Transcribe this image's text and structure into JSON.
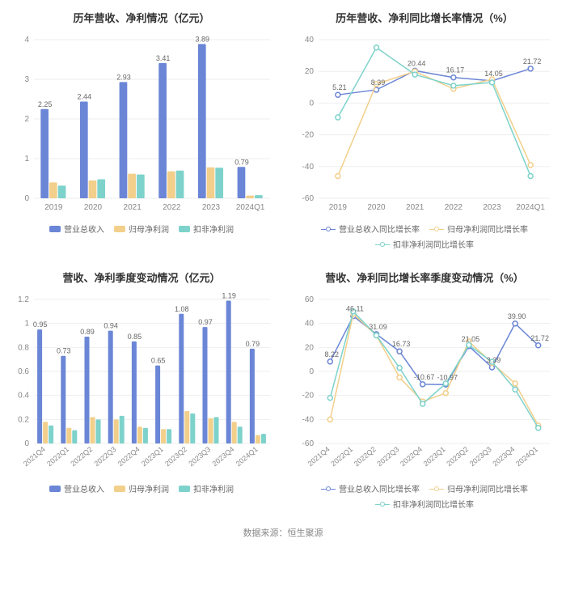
{
  "source_text": "数据来源：恒生聚源",
  "colors": {
    "series_blue": "#6b86d6",
    "series_orange": "#f2cf8b",
    "series_teal": "#7dd2cb",
    "grid": "#eeeeee",
    "axis_text": "#888888",
    "title_text": "#333333",
    "label_text": "#666666",
    "background": "#ffffff"
  },
  "chart_tl": {
    "type": "bar",
    "title": "历年营收、净利情况（亿元）",
    "categories": [
      "2019",
      "2020",
      "2021",
      "2022",
      "2023",
      "2024Q1"
    ],
    "series": [
      {
        "name": "营业总收入",
        "key": "rev",
        "color": "#6b86d6",
        "values": [
          2.25,
          2.44,
          2.93,
          3.41,
          3.89,
          0.79
        ],
        "labels": [
          "2.25",
          "2.44",
          "2.93",
          "3.41",
          "3.89",
          "0.79"
        ]
      },
      {
        "name": "归母净利润",
        "key": "np",
        "color": "#f2cf8b",
        "values": [
          0.4,
          0.45,
          0.62,
          0.68,
          0.78,
          0.07
        ]
      },
      {
        "name": "扣非净利润",
        "key": "dnp",
        "color": "#7dd2cb",
        "values": [
          0.32,
          0.48,
          0.6,
          0.7,
          0.77,
          0.08
        ]
      }
    ],
    "y": {
      "min": 0,
      "max": 4,
      "step": 1
    },
    "label_series": "rev",
    "bar_width": 0.22,
    "group_gap": 0.28,
    "title_fontsize": 13,
    "label_fontsize": 10
  },
  "chart_tr": {
    "type": "line",
    "title": "历年营收、净利同比增长率情况（%）",
    "categories": [
      "2019",
      "2020",
      "2021",
      "2022",
      "2023",
      "2024Q1"
    ],
    "series": [
      {
        "name": "营业总收入同比增长率",
        "key": "rev_g",
        "color": "#6b86d6",
        "values": [
          5.21,
          8.39,
          20.44,
          16.17,
          14.05,
          21.72
        ],
        "labels": [
          "5.21",
          "8.39",
          "20.44",
          "16.17",
          "14.05",
          "21.72"
        ]
      },
      {
        "name": "归母净利润同比增长率",
        "key": "np_g",
        "color": "#f2cf8b",
        "values": [
          -46,
          12,
          20,
          9,
          15,
          -39
        ]
      },
      {
        "name": "扣非净利润同比增长率",
        "key": "dnp_g",
        "color": "#7dd2cb",
        "values": [
          -9,
          35,
          18,
          11,
          13,
          -46
        ]
      }
    ],
    "y": {
      "min": -60,
      "max": 40,
      "step": 20
    },
    "label_series": "rev_g",
    "marker_radius": 3,
    "line_width": 1.5
  },
  "chart_bl": {
    "type": "bar",
    "title": "营收、净利季度变动情况（亿元）",
    "categories": [
      "2021Q4",
      "2022Q1",
      "2022Q2",
      "2022Q3",
      "2022Q4",
      "2023Q1",
      "2023Q2",
      "2023Q3",
      "2023Q4",
      "2024Q1"
    ],
    "series": [
      {
        "name": "营业总收入",
        "key": "rev",
        "color": "#6b86d6",
        "values": [
          0.95,
          0.73,
          0.89,
          0.94,
          0.85,
          0.65,
          1.08,
          0.97,
          1.19,
          0.79
        ],
        "labels": [
          "0.95",
          "0.73",
          "0.89",
          "0.94",
          "0.85",
          "0.65",
          "1.08",
          "0.97",
          "1.19",
          "0.79"
        ]
      },
      {
        "name": "归母净利润",
        "key": "np",
        "color": "#f2cf8b",
        "values": [
          0.18,
          0.13,
          0.22,
          0.2,
          0.14,
          0.12,
          0.27,
          0.21,
          0.18,
          0.07
        ]
      },
      {
        "name": "扣非净利润",
        "key": "dnp",
        "color": "#7dd2cb",
        "values": [
          0.15,
          0.11,
          0.2,
          0.23,
          0.13,
          0.12,
          0.25,
          0.22,
          0.14,
          0.08
        ]
      }
    ],
    "y": {
      "min": 0,
      "max": 1.2,
      "step": 0.2
    },
    "label_series": "rev",
    "bar_width": 0.24,
    "group_gap": 0.2,
    "title_fontsize": 13,
    "label_fontsize": 10,
    "rotate_x": true
  },
  "chart_br": {
    "type": "line",
    "title": "营收、净利同比增长率季度变动情况（%）",
    "categories": [
      "2021Q4",
      "2022Q1",
      "2022Q2",
      "2022Q3",
      "2022Q4",
      "2023Q1",
      "2023Q2",
      "2023Q3",
      "2023Q4",
      "2024Q1"
    ],
    "series": [
      {
        "name": "营业总收入同比增长率",
        "key": "rev_g",
        "color": "#6b86d6",
        "values": [
          8.22,
          46.11,
          31.09,
          16.73,
          -10.67,
          -10.97,
          21.05,
          3.39,
          39.9,
          21.72
        ],
        "labels": [
          "8.22",
          "46.11",
          "31.09",
          "16.73",
          "-10.67",
          "-10.97",
          "21.05",
          "3.39",
          "39.90",
          "21.72"
        ]
      },
      {
        "name": "归母净利润同比增长率",
        "key": "np_g",
        "color": "#f2cf8b",
        "values": [
          -40,
          48,
          30,
          -5,
          -25,
          -18,
          25,
          7,
          -10,
          -45
        ]
      },
      {
        "name": "扣非净利润同比增长率",
        "key": "dnp_g",
        "color": "#7dd2cb",
        "values": [
          -22,
          50,
          30,
          3,
          -27,
          -10,
          22,
          8,
          -15,
          -47
        ]
      }
    ],
    "y": {
      "min": -60,
      "max": 60,
      "step": 20
    },
    "label_series": "rev_g",
    "marker_radius": 3,
    "line_width": 1.5,
    "rotate_x": true
  }
}
